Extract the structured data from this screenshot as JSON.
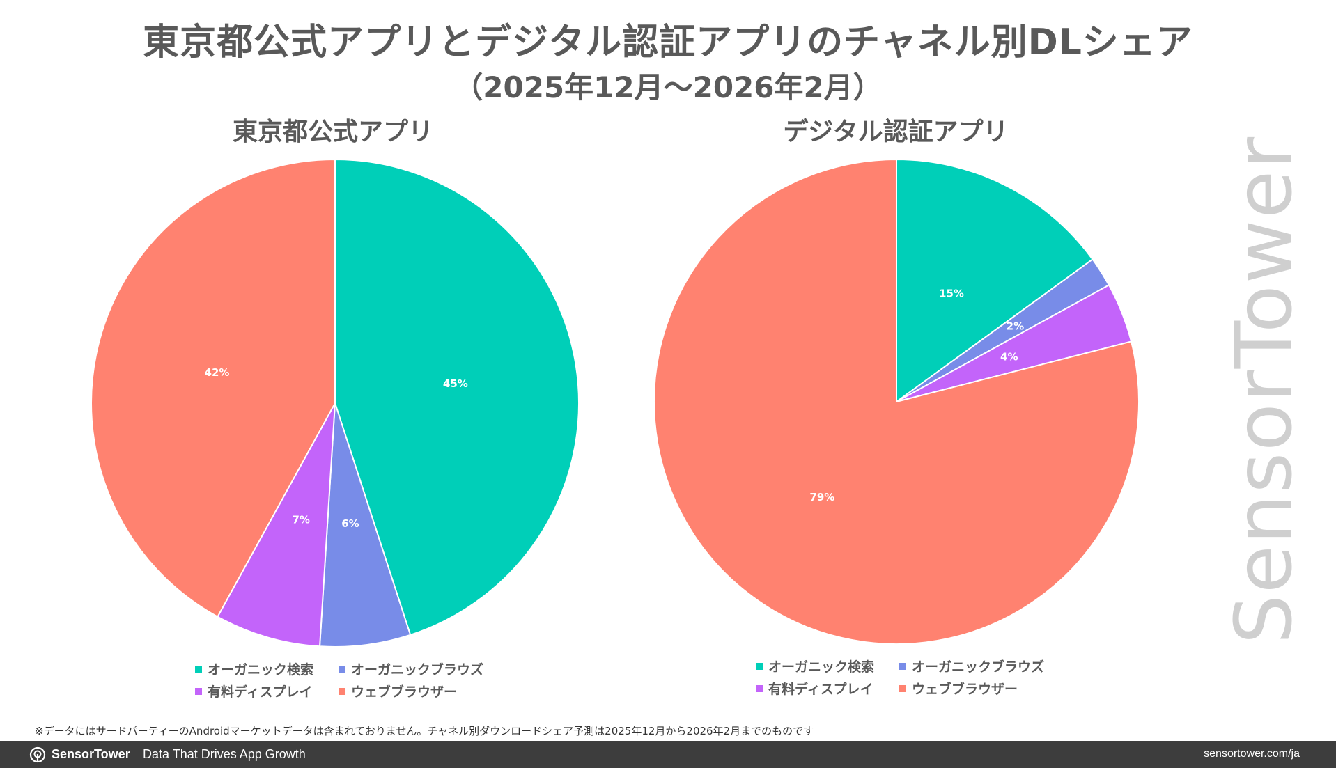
{
  "title": "東京都公式アプリとデジタル認証アプリのチャネル別DLシェア",
  "subtitle": "（2025年12月〜2026年2月）",
  "colors": {
    "organic_search": "#00CFB8",
    "organic_browse": "#788CE8",
    "paid_display": "#C364FA",
    "web_browser": "#FF8270"
  },
  "chart_data": [
    {
      "type": "pie",
      "title": "東京都公式アプリ",
      "categories": [
        "オーガニック検索",
        "オーガニックブラウズ",
        "有料ディスプレイ",
        "ウェブブラウザー"
      ],
      "values": [
        45,
        6,
        7,
        42
      ],
      "labels": [
        "45%",
        "6%",
        "7%",
        "42%"
      ],
      "legend": "bottom"
    },
    {
      "type": "pie",
      "title": "デジタル認証アプリ",
      "categories": [
        "オーガニック検索",
        "オーガニックブラウズ",
        "有料ディスプレイ",
        "ウェブブラウザー"
      ],
      "values": [
        15,
        2,
        4,
        79
      ],
      "labels": [
        "15%",
        "2%",
        "4%",
        "79%"
      ],
      "legend": "bottom"
    }
  ],
  "legend": {
    "items": [
      "オーガニック検索",
      "オーガニックブラウズ",
      "有料ディスプレイ",
      "ウェブブラウザー"
    ]
  },
  "watermark": "SensorTower",
  "footnote": "※データにはサードパーティーのAndroidマーケットデータは含まれておりません。チャネル別ダウンロードシェア予測は2025年12月から2026年2月までのものです",
  "footer": {
    "brand": "SensorTower",
    "tagline": "Data That Drives App Growth",
    "url": "sensortower.com/ja"
  }
}
